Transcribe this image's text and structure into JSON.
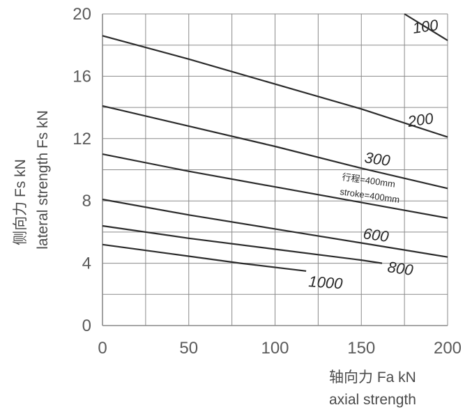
{
  "chart_data": {
    "type": "line",
    "xlabel": "轴向力 Fa kN",
    "xlabel_en": "axial strength",
    "ylabel": "侧向力 Fs kN",
    "ylabel_en": "lateral strength Fs kN",
    "xlim": [
      0,
      200
    ],
    "ylim": [
      0,
      20
    ],
    "xticks": [
      "0",
      "50",
      "100",
      "150",
      "200"
    ],
    "yticks": [
      "0",
      "4",
      "8",
      "12",
      "16",
      "20"
    ],
    "grid": true,
    "annotation_cn": "行程=400mm",
    "annotation_en": "stroke=400mm",
    "series": [
      {
        "name": "100",
        "x": [
          175,
          200
        ],
        "y": [
          20,
          18.3
        ]
      },
      {
        "name": "200",
        "x": [
          0,
          50,
          100,
          150,
          200
        ],
        "y": [
          18.6,
          17.1,
          15.5,
          13.9,
          12.1
        ]
      },
      {
        "name": "300",
        "x": [
          0,
          50,
          100,
          150,
          200
        ],
        "y": [
          14.1,
          12.8,
          11.5,
          10.1,
          8.8
        ]
      },
      {
        "name": "400",
        "x": [
          0,
          50,
          100,
          150,
          200
        ],
        "y": [
          11.0,
          9.9,
          8.9,
          7.9,
          6.9
        ]
      },
      {
        "name": "600",
        "x": [
          0,
          50,
          100,
          150,
          200
        ],
        "y": [
          8.1,
          7.1,
          6.2,
          5.3,
          4.4
        ]
      },
      {
        "name": "800",
        "x": [
          0,
          50,
          100,
          150,
          162
        ],
        "y": [
          6.4,
          5.6,
          4.9,
          4.2,
          4.0
        ]
      },
      {
        "name": "1000",
        "x": [
          0,
          40,
          80,
          118
        ],
        "y": [
          5.2,
          4.6,
          4.0,
          3.5
        ]
      }
    ],
    "colors": {
      "line": "#2b2b2b",
      "grid": "#8a8a8a",
      "text": "#4a4a4a"
    }
  }
}
